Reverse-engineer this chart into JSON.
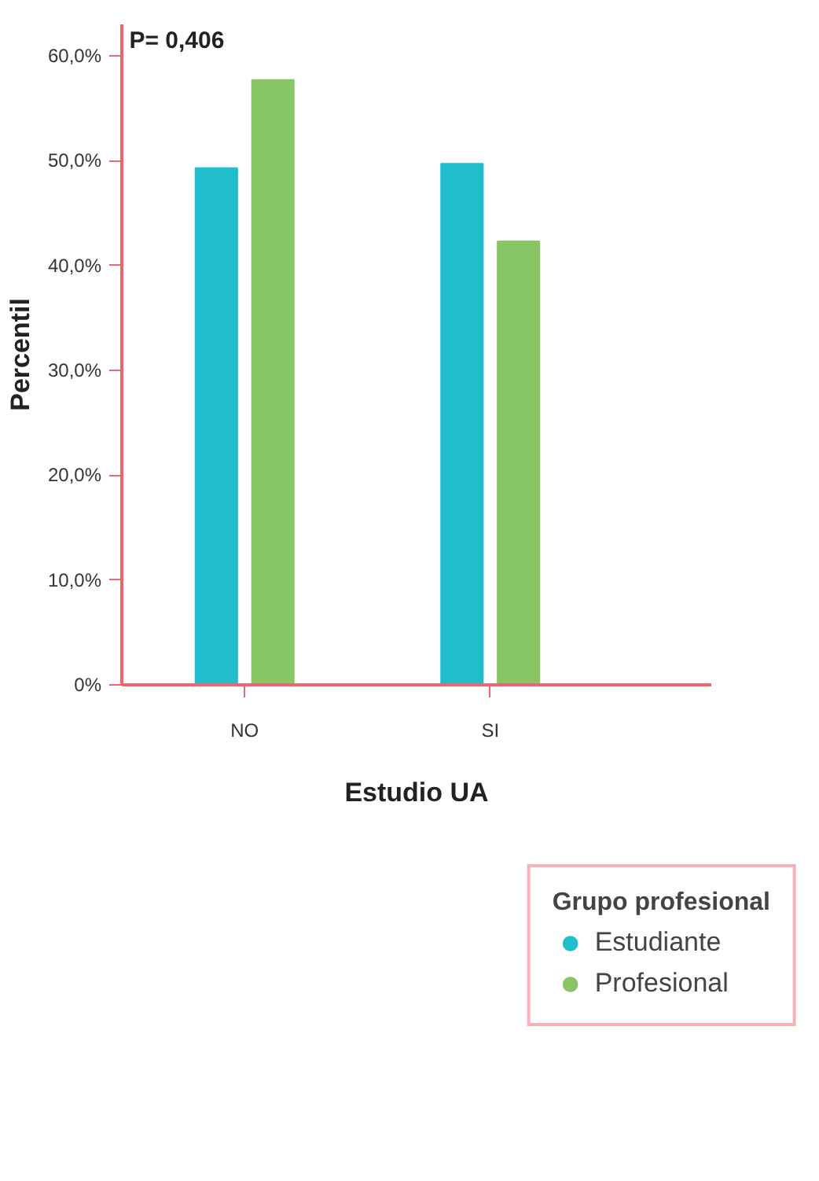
{
  "chart_data": {
    "type": "bar",
    "categories": [
      "NO",
      "SI"
    ],
    "series": [
      {
        "name": "Estudiante",
        "color": "#21bdcc",
        "values": [
          49.3,
          49.7
        ]
      },
      {
        "name": "Profesional",
        "color": "#88c665",
        "values": [
          57.7,
          42.3
        ]
      }
    ],
    "xlabel": "Estudio UA",
    "ylabel": "Percentil",
    "legend_title": "Grupo profesional",
    "annotations": [
      "P= 0,406"
    ],
    "ylim": [
      0,
      63
    ],
    "yticks": [
      {
        "value": 0,
        "label": "0%"
      },
      {
        "value": 10,
        "label": "10,0%"
      },
      {
        "value": 20,
        "label": "20,0%"
      },
      {
        "value": 30,
        "label": "30,0%"
      },
      {
        "value": 40,
        "label": "40,0%"
      },
      {
        "value": 50,
        "label": "50,0%"
      },
      {
        "value": 60,
        "label": "60,0%"
      }
    ],
    "grid": false,
    "legend": "bottom"
  }
}
